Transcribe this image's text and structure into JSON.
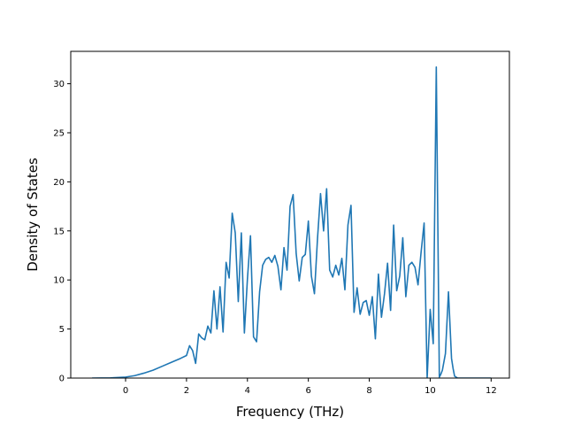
{
  "chart_data": {
    "type": "line",
    "xlabel": "Frequency (THz)",
    "ylabel": "Density of States",
    "xlim": [
      -1.8,
      12.6
    ],
    "ylim": [
      0,
      33.3
    ],
    "xticks": [
      0,
      2,
      4,
      6,
      8,
      10,
      12
    ],
    "yticks": [
      0,
      5,
      10,
      15,
      20,
      25,
      30
    ],
    "grid": false,
    "series": [
      {
        "color": "#1f77b4",
        "x": [
          -1.1,
          -0.5,
          0.0,
          0.3,
          0.6,
          0.9,
          1.2,
          1.5,
          1.8,
          2.0,
          2.1,
          2.2,
          2.3,
          2.4,
          2.5,
          2.6,
          2.7,
          2.8,
          2.9,
          3.0,
          3.1,
          3.2,
          3.3,
          3.4,
          3.5,
          3.6,
          3.7,
          3.8,
          3.9,
          4.0,
          4.1,
          4.2,
          4.3,
          4.4,
          4.5,
          4.6,
          4.7,
          4.8,
          4.9,
          5.0,
          5.1,
          5.2,
          5.3,
          5.4,
          5.5,
          5.6,
          5.7,
          5.8,
          5.9,
          6.0,
          6.1,
          6.2,
          6.3,
          6.4,
          6.5,
          6.6,
          6.7,
          6.8,
          6.9,
          7.0,
          7.1,
          7.2,
          7.3,
          7.4,
          7.5,
          7.6,
          7.7,
          7.8,
          7.9,
          8.0,
          8.1,
          8.2,
          8.3,
          8.4,
          8.5,
          8.6,
          8.7,
          8.8,
          8.9,
          9.0,
          9.1,
          9.2,
          9.3,
          9.4,
          9.5,
          9.6,
          9.7,
          9.8,
          9.9,
          10.0,
          10.1,
          10.2,
          10.3,
          10.35,
          10.4,
          10.5,
          10.6,
          10.7,
          10.75,
          10.8,
          10.9,
          11.0,
          11.5,
          12.0
        ],
        "y": [
          0.0,
          0.02,
          0.1,
          0.25,
          0.5,
          0.8,
          1.2,
          1.6,
          2.0,
          2.3,
          3.3,
          2.8,
          1.5,
          4.5,
          4.1,
          3.9,
          5.3,
          4.6,
          8.9,
          5.0,
          9.3,
          4.7,
          11.8,
          10.2,
          16.8,
          14.8,
          7.8,
          14.8,
          4.6,
          10.1,
          14.5,
          4.2,
          3.7,
          8.8,
          11.5,
          12.1,
          12.3,
          11.8,
          12.5,
          11.4,
          9.0,
          13.3,
          11.0,
          17.5,
          18.7,
          12.7,
          9.9,
          12.3,
          12.6,
          16.0,
          10.4,
          8.6,
          14.2,
          18.8,
          15.0,
          19.3,
          11.0,
          10.3,
          11.5,
          10.5,
          12.2,
          9.0,
          15.6,
          17.6,
          6.7,
          9.2,
          6.5,
          7.7,
          7.9,
          6.4,
          8.3,
          4.0,
          10.6,
          6.2,
          8.6,
          11.7,
          6.9,
          15.6,
          8.9,
          10.4,
          14.3,
          8.3,
          11.5,
          11.8,
          11.3,
          9.5,
          12.8,
          15.8,
          0.0,
          7.0,
          3.5,
          31.7,
          0.1,
          0.4,
          0.8,
          2.5,
          8.8,
          2.0,
          1.0,
          0.2,
          0.0,
          0.0,
          0.0,
          0.0
        ]
      }
    ]
  }
}
